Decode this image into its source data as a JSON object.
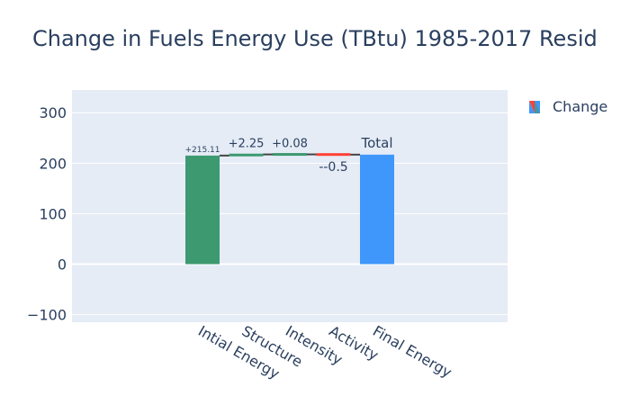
{
  "chart_data": {
    "type": "waterfall",
    "title": "Change in Fuels Energy Use (TBtu) 1985-2017 Resid",
    "categories": [
      "Intial Energy",
      "Structure",
      "Intensity",
      "Activity",
      "Final Energy"
    ],
    "measures": [
      "relative",
      "relative",
      "relative",
      "relative",
      "total"
    ],
    "values": [
      215.11,
      2.25,
      0.08,
      -0.5,
      216.94
    ],
    "text_labels": [
      "+215.11",
      "+2.25",
      "+0.08",
      "--0.5",
      "Total"
    ],
    "ylim": [
      -115,
      345
    ],
    "yticks": [
      -100,
      0,
      100,
      200,
      300
    ],
    "ytick_labels": [
      "−100",
      "0",
      "100",
      "200",
      "300"
    ],
    "grid": true,
    "legend": {
      "label": "Change",
      "position": "top-right"
    },
    "colors": {
      "increasing": "#3d9970",
      "decreasing": "#ff4136",
      "total": "#4097fb",
      "plot_bg": "#e5ecf6",
      "grid": "#ffffff",
      "connector": "#444444",
      "text": "#2a3f5f"
    }
  }
}
